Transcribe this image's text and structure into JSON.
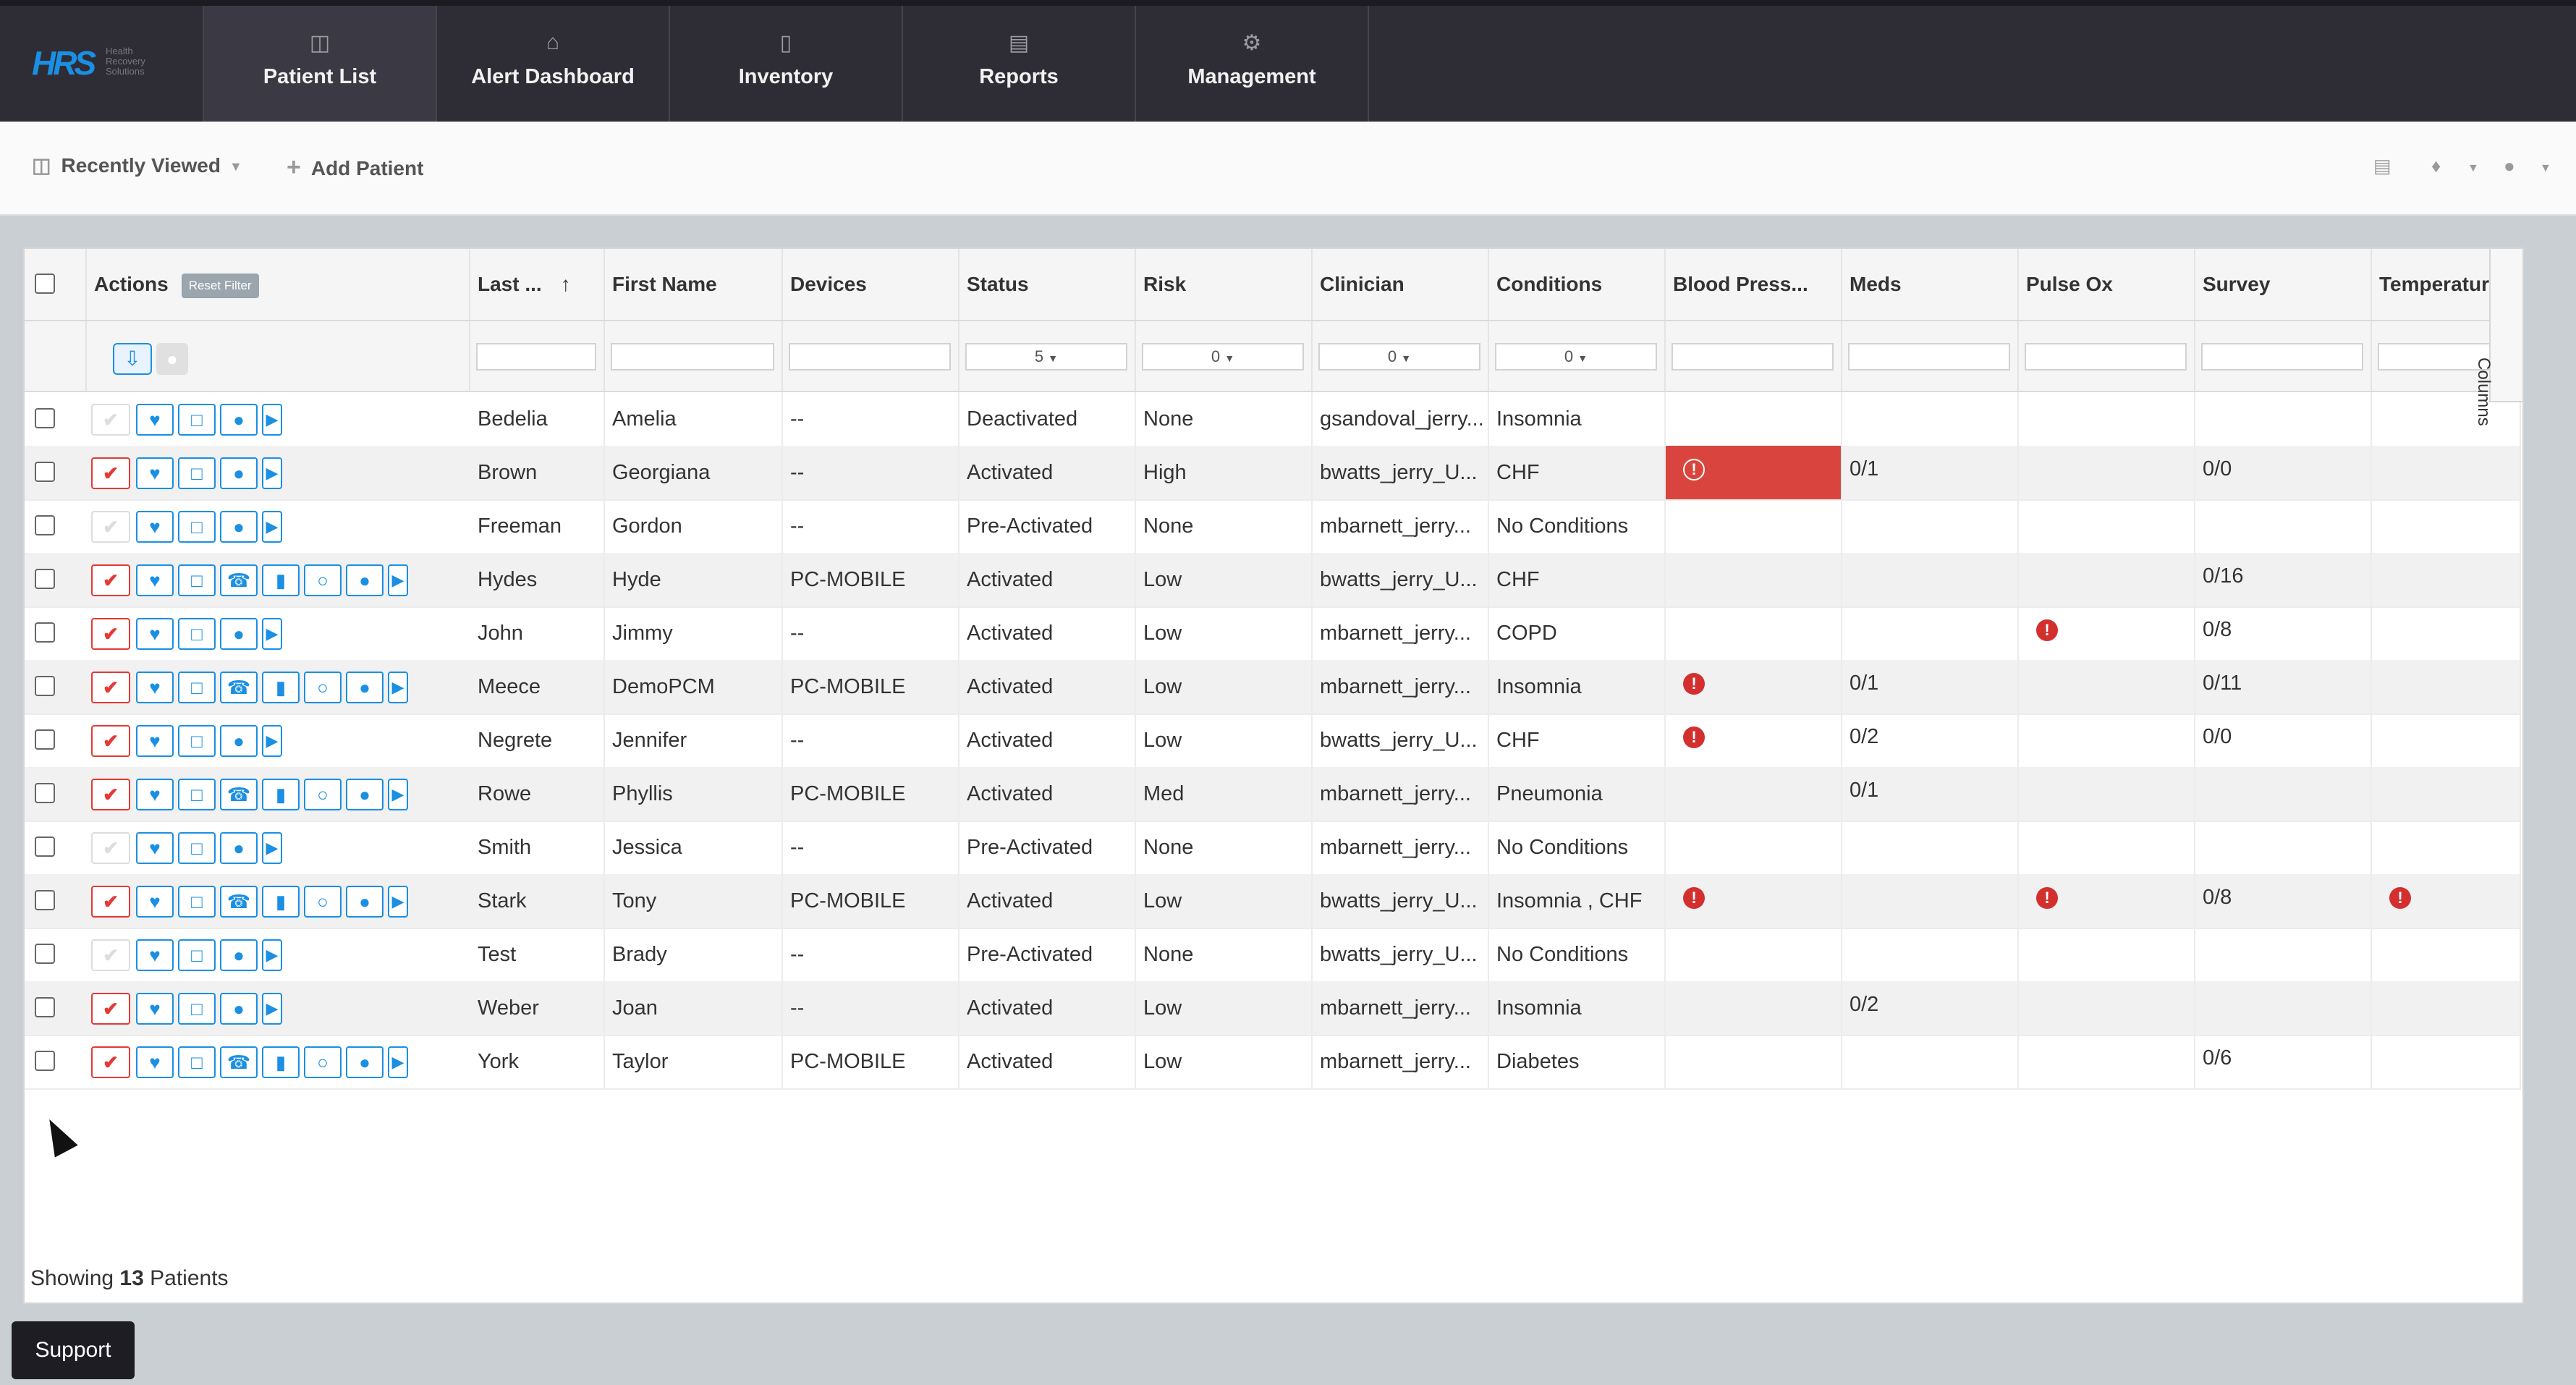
{
  "app": {
    "logo": "HRS",
    "logo_sub": "Health Recovery Solutions"
  },
  "nav": [
    {
      "label": "Patient List",
      "icon": "database-icon"
    },
    {
      "label": "Alert Dashboard",
      "icon": "home-icon"
    },
    {
      "label": "Inventory",
      "icon": "tablet-icon"
    },
    {
      "label": "Reports",
      "icon": "chart-icon"
    },
    {
      "label": "Management",
      "icon": "gear-icon"
    }
  ],
  "toolbar": {
    "recently_viewed": "Recently Viewed",
    "add_patient": "Add Patient"
  },
  "table": {
    "headers": {
      "actions": "Actions",
      "reset_filter": "Reset Filter",
      "last": "Last ...",
      "first": "First Name",
      "devices": "Devices",
      "status": "Status",
      "risk": "Risk",
      "clinician": "Clinician",
      "conditions": "Conditions",
      "bp": "Blood Press...",
      "meds": "Meds",
      "pulseox": "Pulse Ox",
      "survey": "Survey",
      "temperature": "Temperature"
    },
    "filters": {
      "status": "5",
      "risk": "0",
      "clinician": "0",
      "conditions": "0"
    },
    "columns_tab": "Columns",
    "rows": [
      {
        "last": "Bedelia",
        "first": "Amelia",
        "devices": "--",
        "status": "Deactivated",
        "risk": "None",
        "clinician": "gsandoval_jerry...",
        "conditions": "Insomnia",
        "bp": "",
        "meds": "",
        "pulseox": "",
        "survey": "",
        "temp": ""
      },
      {
        "last": "Brown",
        "first": "Georgiana",
        "devices": "--",
        "status": "Activated",
        "risk": "High",
        "clinician": "bwatts_jerry_U...",
        "conditions": "CHF",
        "bp": "!",
        "meds": "0/1",
        "pulseox": "",
        "survey": "0/0",
        "temp": ""
      },
      {
        "last": "Freeman",
        "first": "Gordon",
        "devices": "--",
        "status": "Pre-Activated",
        "risk": "None",
        "clinician": "mbarnett_jerry...",
        "conditions": "No Conditions",
        "bp": "",
        "meds": "",
        "pulseox": "",
        "survey": "",
        "temp": ""
      },
      {
        "last": "Hydes",
        "first": "Hyde",
        "devices": "PC-MOBILE",
        "status": "Activated",
        "risk": "Low",
        "clinician": "bwatts_jerry_U...",
        "conditions": "CHF",
        "bp": "",
        "meds": "",
        "pulseox": "",
        "survey": "0/16",
        "temp": ""
      },
      {
        "last": "John",
        "first": "Jimmy",
        "devices": "--",
        "status": "Activated",
        "risk": "Low",
        "clinician": "mbarnett_jerry...",
        "conditions": "COPD",
        "bp": "",
        "meds": "",
        "pulseox": "!",
        "survey": "0/8",
        "temp": ""
      },
      {
        "last": "Meece",
        "first": "DemoPCM",
        "devices": "PC-MOBILE",
        "status": "Activated",
        "risk": "Low",
        "clinician": "mbarnett_jerry...",
        "conditions": "Insomnia",
        "bp": "!",
        "meds": "0/1",
        "pulseox": "",
        "survey": "0/11",
        "temp": ""
      },
      {
        "last": "Negrete",
        "first": "Jennifer",
        "devices": "--",
        "status": "Activated",
        "risk": "Low",
        "clinician": "bwatts_jerry_U...",
        "conditions": "CHF",
        "bp": "!",
        "meds": "0/2",
        "pulseox": "",
        "survey": "0/0",
        "temp": ""
      },
      {
        "last": "Rowe",
        "first": "Phyllis",
        "devices": "PC-MOBILE",
        "status": "Activated",
        "risk": "Med",
        "clinician": "mbarnett_jerry...",
        "conditions": "Pneumonia",
        "bp": "",
        "meds": "0/1",
        "pulseox": "",
        "survey": "",
        "temp": ""
      },
      {
        "last": "Smith",
        "first": "Jessica",
        "devices": "--",
        "status": "Pre-Activated",
        "risk": "None",
        "clinician": "mbarnett_jerry...",
        "conditions": "No Conditions",
        "bp": "",
        "meds": "",
        "pulseox": "",
        "survey": "",
        "temp": ""
      },
      {
        "last": "Stark",
        "first": "Tony",
        "devices": "PC-MOBILE",
        "status": "Activated",
        "risk": "Low",
        "clinician": "bwatts_jerry_U...",
        "conditions": "Insomnia , CHF",
        "bp": "!",
        "meds": "",
        "pulseox": "!",
        "survey": "0/8",
        "temp": "!"
      },
      {
        "last": "Test",
        "first": "Brady",
        "devices": "--",
        "status": "Pre-Activated",
        "risk": "None",
        "clinician": "bwatts_jerry_U...",
        "conditions": "No Conditions",
        "bp": "",
        "meds": "",
        "pulseox": "",
        "survey": "",
        "temp": ""
      },
      {
        "last": "Weber",
        "first": "Joan",
        "devices": "--",
        "status": "Activated",
        "risk": "Low",
        "clinician": "mbarnett_jerry...",
        "conditions": "Insomnia",
        "bp": "",
        "meds": "0/2",
        "pulseox": "",
        "survey": "",
        "temp": ""
      },
      {
        "last": "York",
        "first": "Taylor",
        "devices": "PC-MOBILE",
        "status": "Activated",
        "risk": "Low",
        "clinician": "mbarnett_jerry...",
        "conditions": "Diabetes",
        "bp": "",
        "meds": "",
        "pulseox": "",
        "survey": "0/6",
        "temp": ""
      }
    ]
  },
  "footer": {
    "showing": "Showing",
    "count": "13",
    "patients": "Patients"
  },
  "support": "Support",
  "colors": {
    "accent": "#1a8fe3",
    "alert": "#d32f2f",
    "topbar": "#2e2d36"
  }
}
